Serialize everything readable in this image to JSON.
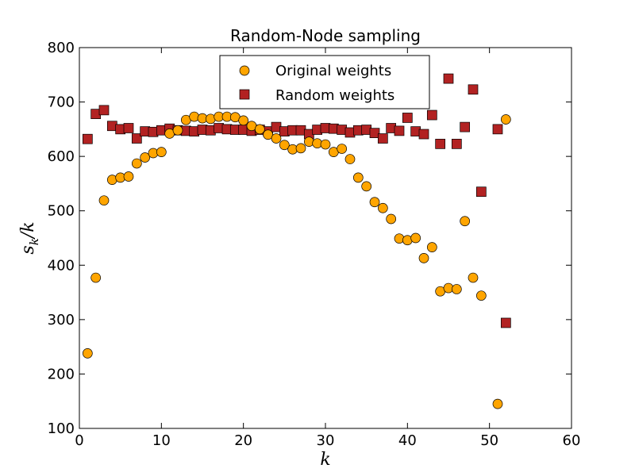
{
  "chart_data": {
    "type": "scatter",
    "title": "Random-Node sampling",
    "xlabel": "k",
    "ylabel": "s_k / k",
    "ylabel_main": "s",
    "ylabel_sub": "k",
    "ylabel_tail": "/k",
    "xlim": [
      0,
      60
    ],
    "ylim": [
      100,
      800
    ],
    "xticks": [
      0,
      10,
      20,
      30,
      40,
      50,
      60
    ],
    "yticks": [
      100,
      200,
      300,
      400,
      500,
      600,
      700,
      800
    ],
    "grid": false,
    "legend_position": "top-center",
    "series": [
      {
        "name": "Original weights",
        "marker": "circle",
        "color": "#FFA500",
        "x": [
          1,
          2,
          3,
          4,
          5,
          6,
          7,
          8,
          9,
          10,
          11,
          12,
          13,
          14,
          15,
          16,
          17,
          18,
          19,
          20,
          21,
          22,
          23,
          24,
          25,
          26,
          27,
          28,
          29,
          30,
          31,
          32,
          33,
          34,
          35,
          36,
          37,
          38,
          39,
          40,
          41,
          42,
          43,
          44,
          45,
          46,
          47,
          48,
          49,
          51,
          52
        ],
        "y": [
          238,
          377,
          519,
          557,
          561,
          563,
          587,
          598,
          606,
          608,
          642,
          648,
          667,
          673,
          670,
          669,
          673,
          673,
          672,
          666,
          656,
          650,
          640,
          633,
          621,
          613,
          615,
          627,
          624,
          622,
          608,
          614,
          595,
          561,
          545,
          516,
          505,
          485,
          449,
          446,
          450,
          413,
          433,
          352,
          358,
          356,
          481,
          377,
          344,
          145,
          668
        ]
      },
      {
        "name": "Random weights",
        "marker": "square",
        "color": "#B22222",
        "x": [
          1,
          2,
          3,
          4,
          5,
          6,
          7,
          8,
          9,
          10,
          11,
          12,
          13,
          14,
          15,
          16,
          17,
          18,
          19,
          20,
          21,
          22,
          23,
          24,
          25,
          26,
          27,
          28,
          29,
          30,
          31,
          32,
          33,
          34,
          35,
          36,
          37,
          38,
          39,
          40,
          41,
          42,
          43,
          44,
          45,
          46,
          47,
          48,
          49,
          51,
          52
        ],
        "y": [
          632,
          678,
          685,
          656,
          650,
          652,
          633,
          646,
          645,
          648,
          651,
          648,
          647,
          646,
          649,
          648,
          652,
          650,
          649,
          649,
          647,
          649,
          646,
          654,
          646,
          648,
          648,
          641,
          649,
          652,
          651,
          649,
          644,
          648,
          649,
          643,
          633,
          652,
          647,
          671,
          646,
          641,
          676,
          623,
          743,
          623,
          654,
          723,
          535,
          650,
          294
        ]
      }
    ]
  }
}
